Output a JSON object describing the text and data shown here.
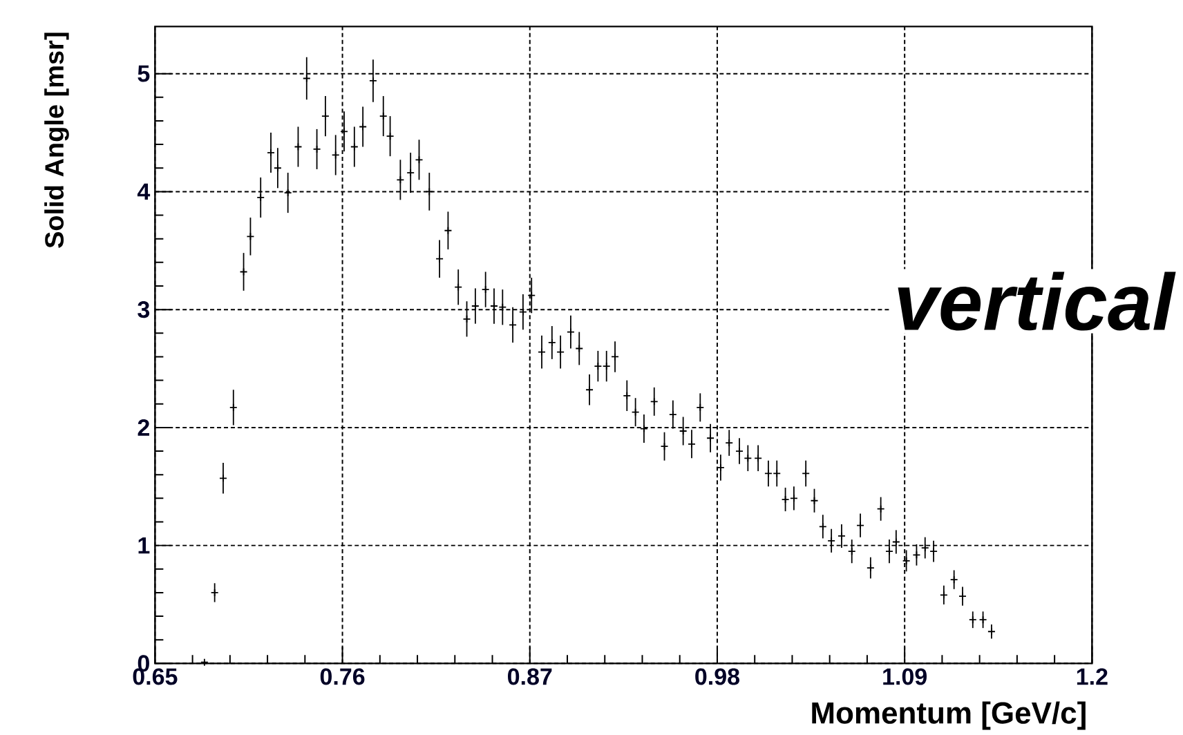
{
  "chart_data": {
    "type": "scatter",
    "xlabel": "Momentum [GeV/c]",
    "ylabel": "Solid Angle [msr]",
    "annotations": [
      "vertical"
    ],
    "xlim": [
      0.65,
      1.2
    ],
    "ylim": [
      0,
      5.4
    ],
    "xticks": [
      0.65,
      0.76,
      0.87,
      0.98,
      1.09,
      1.2
    ],
    "yticks": [
      0,
      1,
      2,
      3,
      4,
      5
    ],
    "grid": true,
    "marker": "cross",
    "series": [
      {
        "color": "#000000",
        "x": [
          0.679,
          0.685,
          0.69,
          0.696,
          0.702,
          0.706,
          0.712,
          0.718,
          0.722,
          0.728,
          0.734,
          0.739,
          0.745,
          0.75,
          0.756,
          0.761,
          0.767,
          0.772,
          0.778,
          0.784,
          0.788,
          0.794,
          0.8,
          0.805,
          0.811,
          0.817,
          0.822,
          0.828,
          0.833,
          0.838,
          0.844,
          0.849,
          0.854,
          0.86,
          0.866,
          0.871,
          0.877,
          0.883,
          0.888,
          0.894,
          0.899,
          0.905,
          0.91,
          0.915,
          0.92,
          0.927,
          0.932,
          0.937,
          0.943,
          0.949,
          0.954,
          0.96,
          0.965,
          0.97,
          0.976,
          0.982,
          0.987,
          0.993,
          0.998,
          1.004,
          1.01,
          1.015,
          1.02,
          1.025,
          1.032,
          1.037,
          1.042,
          1.047,
          1.053,
          1.059,
          1.064,
          1.07,
          1.076,
          1.081,
          1.085,
          1.091,
          1.097,
          1.102,
          1.107,
          1.113,
          1.119,
          1.124,
          1.13,
          1.136,
          1.141
        ],
        "values": [
          0.01,
          0.6,
          1.57,
          2.17,
          3.32,
          3.62,
          3.95,
          4.33,
          4.2,
          3.99,
          4.38,
          4.96,
          4.36,
          4.64,
          4.31,
          4.51,
          4.38,
          4.55,
          4.94,
          4.64,
          4.47,
          4.1,
          4.16,
          4.27,
          4.0,
          3.43,
          3.67,
          3.19,
          2.92,
          3.03,
          3.17,
          3.03,
          3.02,
          2.87,
          2.98,
          3.12,
          2.64,
          2.72,
          2.64,
          2.81,
          2.67,
          2.32,
          2.52,
          2.52,
          2.6,
          2.27,
          2.13,
          1.99,
          2.22,
          1.84,
          2.11,
          1.97,
          1.86,
          2.17,
          1.91,
          1.66,
          1.87,
          1.8,
          1.74,
          1.74,
          1.61,
          1.61,
          1.39,
          1.4,
          1.61,
          1.38,
          1.16,
          1.04,
          1.08,
          0.95,
          1.17,
          0.81,
          1.31,
          0.95,
          1.03,
          0.87,
          0.92,
          0.98,
          0.95,
          0.58,
          0.71,
          0.57,
          0.37,
          0.37,
          0.27
        ],
        "errors": [
          null,
          0.08,
          0.13,
          0.15,
          0.16,
          0.16,
          0.17,
          0.17,
          0.17,
          0.17,
          0.17,
          0.18,
          0.17,
          0.17,
          0.17,
          0.17,
          0.17,
          0.17,
          0.18,
          0.17,
          0.17,
          0.17,
          0.17,
          0.17,
          0.16,
          0.16,
          0.16,
          0.15,
          0.15,
          0.15,
          0.15,
          0.15,
          0.15,
          0.15,
          0.15,
          0.15,
          0.14,
          0.14,
          0.14,
          0.14,
          0.14,
          0.13,
          0.13,
          0.13,
          0.13,
          0.13,
          0.12,
          0.12,
          0.12,
          0.12,
          0.12,
          0.12,
          0.12,
          0.12,
          0.12,
          0.11,
          0.11,
          0.11,
          0.11,
          0.11,
          0.11,
          0.11,
          0.1,
          0.1,
          0.11,
          0.1,
          0.1,
          0.1,
          0.1,
          0.1,
          0.1,
          0.09,
          0.1,
          0.1,
          0.1,
          0.09,
          0.09,
          0.09,
          0.09,
          0.08,
          0.08,
          0.08,
          0.07,
          0.07,
          0.06
        ]
      }
    ]
  }
}
